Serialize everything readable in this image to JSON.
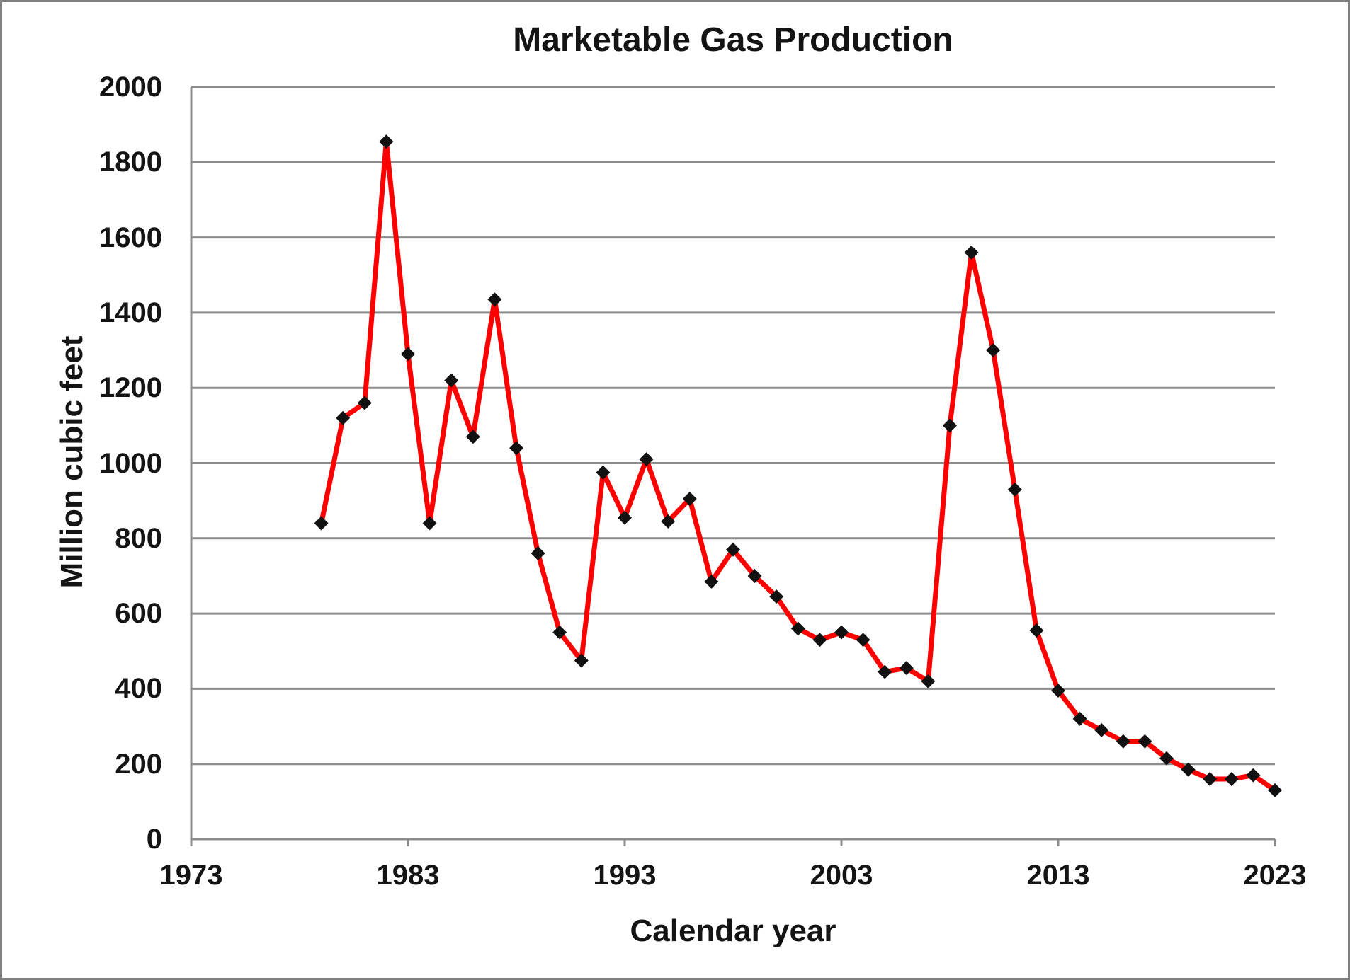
{
  "chart_data": {
    "type": "line",
    "title": "Marketable Gas Production",
    "xlabel": "Calendar year",
    "ylabel": "Million cubic feet",
    "x": [
      1979,
      1980,
      1981,
      1982,
      1983,
      1984,
      1985,
      1986,
      1987,
      1988,
      1989,
      1990,
      1991,
      1992,
      1993,
      1994,
      1995,
      1996,
      1997,
      1998,
      1999,
      2000,
      2001,
      2002,
      2003,
      2004,
      2005,
      2006,
      2007,
      2008,
      2009,
      2010,
      2011,
      2012,
      2013,
      2014,
      2015,
      2016,
      2017,
      2018,
      2019,
      2020,
      2021,
      2022,
      2023
    ],
    "values": [
      840,
      1120,
      1160,
      1855,
      1290,
      840,
      1220,
      1070,
      1435,
      1040,
      760,
      550,
      475,
      975,
      855,
      1010,
      845,
      905,
      685,
      770,
      700,
      645,
      560,
      530,
      550,
      530,
      445,
      455,
      420,
      1100,
      1560,
      1300,
      930,
      555,
      395,
      320,
      290,
      260,
      260,
      215,
      185,
      160,
      160,
      170,
      130
    ],
    "xlim": [
      1973,
      2023
    ],
    "ylim": [
      0,
      2000
    ],
    "x_ticks": [
      1973,
      1983,
      1993,
      2003,
      2013,
      2023
    ],
    "y_ticks": [
      0,
      200,
      400,
      600,
      800,
      1000,
      1200,
      1400,
      1600,
      1800,
      2000
    ],
    "grid": "horizontal",
    "legend": "none",
    "line_color": "#ff0000",
    "marker": "diamond",
    "marker_color": "#111111",
    "gridline_color": "#8c8c8c",
    "axis_color": "#8c8c8c",
    "text_color": "#141414",
    "border_color": "#7f7f7f",
    "background": "#ffffff"
  }
}
